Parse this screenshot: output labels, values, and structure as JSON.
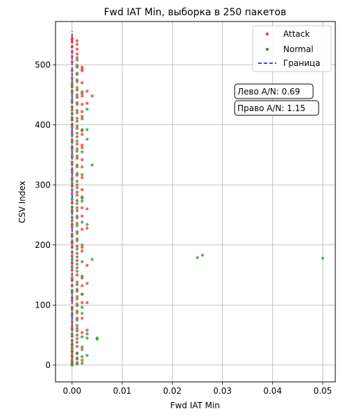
{
  "chart_data": {
    "type": "scatter",
    "title": "Fwd IAT Min, выборка в 250 пакетов",
    "xlabel": "Fwd IAT Min",
    "ylabel": "CSV Index",
    "xlim": [
      -0.0033,
      0.0525
    ],
    "ylim": [
      -28,
      572
    ],
    "xticks": [
      0.0,
      0.01,
      0.02,
      0.03,
      0.04,
      0.05
    ],
    "xtick_labels": [
      "0.00",
      "0.01",
      "0.02",
      "0.03",
      "0.04",
      "0.05"
    ],
    "yticks": [
      0,
      100,
      200,
      300,
      400,
      500
    ],
    "ytick_labels": [
      "0",
      "100",
      "200",
      "300",
      "400",
      "500"
    ],
    "grid": true,
    "legend_position": "top-right",
    "boundary": {
      "name": "Граница",
      "x": 0.0,
      "color": "#0000ff",
      "style": "dashed"
    },
    "annotations": [
      "Лево A/N: 0.69",
      "Право A/N: 1.15"
    ],
    "series": [
      {
        "name": "Attack",
        "color": "#ee3333",
        "points": [
          [
            0,
            2
          ],
          [
            0,
            8
          ],
          [
            0,
            14
          ],
          [
            0,
            22
          ],
          [
            0,
            28
          ],
          [
            0,
            35
          ],
          [
            0,
            48
          ],
          [
            0,
            60
          ],
          [
            0,
            72
          ],
          [
            0,
            85
          ],
          [
            0,
            96
          ],
          [
            0,
            108
          ],
          [
            0,
            120
          ],
          [
            0,
            132
          ],
          [
            0,
            145
          ],
          [
            0,
            158
          ],
          [
            0,
            170
          ],
          [
            0,
            182
          ],
          [
            0,
            196
          ],
          [
            0,
            205
          ],
          [
            0,
            218
          ],
          [
            0,
            230
          ],
          [
            0,
            240
          ],
          [
            0,
            258
          ],
          [
            0,
            270
          ],
          [
            0,
            285
          ],
          [
            0,
            298
          ],
          [
            0,
            312
          ],
          [
            0,
            325
          ],
          [
            0,
            338
          ],
          [
            0,
            350
          ],
          [
            0,
            362
          ],
          [
            0,
            375
          ],
          [
            0,
            388
          ],
          [
            0,
            400
          ],
          [
            0,
            412
          ],
          [
            0,
            425
          ],
          [
            0,
            438
          ],
          [
            0,
            452
          ],
          [
            0,
            466
          ],
          [
            0,
            478
          ],
          [
            0,
            490
          ],
          [
            0,
            505
          ],
          [
            0,
            514
          ],
          [
            0,
            522
          ],
          [
            0,
            530
          ],
          [
            0,
            538
          ],
          [
            0,
            542
          ],
          [
            0,
            544
          ],
          [
            0.001,
            4
          ],
          [
            0.001,
            12
          ],
          [
            0.001,
            20
          ],
          [
            0.001,
            31
          ],
          [
            0.001,
            44
          ],
          [
            0.001,
            57
          ],
          [
            0.001,
            66
          ],
          [
            0.001,
            78
          ],
          [
            0.001,
            90
          ],
          [
            0.001,
            102
          ],
          [
            0.001,
            114
          ],
          [
            0.001,
            126
          ],
          [
            0.001,
            138
          ],
          [
            0.001,
            150
          ],
          [
            0.001,
            162
          ],
          [
            0.001,
            174
          ],
          [
            0.001,
            186
          ],
          [
            0.001,
            198
          ],
          [
            0.001,
            210
          ],
          [
            0.001,
            222
          ],
          [
            0.001,
            236
          ],
          [
            0.001,
            248
          ],
          [
            0.001,
            262
          ],
          [
            0.001,
            274
          ],
          [
            0.001,
            288
          ],
          [
            0.001,
            300
          ],
          [
            0.001,
            316
          ],
          [
            0.001,
            330
          ],
          [
            0.001,
            344
          ],
          [
            0.001,
            356
          ],
          [
            0.001,
            368
          ],
          [
            0.001,
            380
          ],
          [
            0.001,
            394
          ],
          [
            0.001,
            406
          ],
          [
            0.001,
            420
          ],
          [
            0.001,
            434
          ],
          [
            0.001,
            446
          ],
          [
            0.001,
            458
          ],
          [
            0.001,
            472
          ],
          [
            0.001,
            484
          ],
          [
            0.001,
            496
          ],
          [
            0.001,
            508
          ],
          [
            0.001,
            518
          ],
          [
            0.001,
            526
          ],
          [
            0.001,
            534
          ],
          [
            0.001,
            540
          ],
          [
            0.002,
            8
          ],
          [
            0.002,
            26
          ],
          [
            0.002,
            54
          ],
          [
            0.002,
            78
          ],
          [
            0.002,
            104
          ],
          [
            0.002,
            118
          ],
          [
            0.002,
            132
          ],
          [
            0.002,
            148
          ],
          [
            0.002,
            190
          ],
          [
            0.002,
            196
          ],
          [
            0.002,
            226
          ],
          [
            0.002,
            248
          ],
          [
            0.002,
            262
          ],
          [
            0.002,
            280
          ],
          [
            0.002,
            292
          ],
          [
            0.002,
            312
          ],
          [
            0.002,
            330
          ],
          [
            0.002,
            342
          ],
          [
            0.002,
            362
          ],
          [
            0.002,
            366
          ],
          [
            0.002,
            384
          ],
          [
            0.002,
            390
          ],
          [
            0.002,
            414
          ],
          [
            0.002,
            422
          ],
          [
            0.002,
            434
          ],
          [
            0.002,
            448
          ],
          [
            0.002,
            452
          ],
          [
            0.002,
            470
          ],
          [
            0.002,
            490
          ],
          [
            0.002,
            493
          ],
          [
            0.002,
            496
          ],
          [
            0.003,
            58
          ],
          [
            0.003,
            104
          ],
          [
            0.003,
            136
          ],
          [
            0.003,
            166
          ],
          [
            0.003,
            228
          ],
          [
            0.003,
            260
          ],
          [
            0.003,
            436
          ],
          [
            0.003,
            456
          ],
          [
            0.004,
            448
          ]
        ]
      },
      {
        "name": "Normal",
        "color": "#2e9a2e",
        "points": [
          [
            0,
            0
          ],
          [
            0,
            5
          ],
          [
            0,
            17
          ],
          [
            0,
            24
          ],
          [
            0,
            33
          ],
          [
            0,
            41
          ],
          [
            0,
            52
          ],
          [
            0,
            64
          ],
          [
            0,
            81
          ],
          [
            0,
            92
          ],
          [
            0,
            112
          ],
          [
            0,
            124
          ],
          [
            0,
            141
          ],
          [
            0,
            164
          ],
          [
            0,
            175
          ],
          [
            0,
            188
          ],
          [
            0,
            203
          ],
          [
            0,
            214
          ],
          [
            0,
            234
          ],
          [
            0,
            246
          ],
          [
            0,
            255
          ],
          [
            0,
            263
          ],
          [
            0,
            276
          ],
          [
            0,
            292
          ],
          [
            0,
            303
          ],
          [
            0,
            309
          ],
          [
            0,
            321
          ],
          [
            0,
            334
          ],
          [
            0,
            346
          ],
          [
            0,
            358
          ],
          [
            0,
            371
          ],
          [
            0,
            384
          ],
          [
            0,
            396
          ],
          [
            0,
            408
          ],
          [
            0,
            418
          ],
          [
            0,
            430
          ],
          [
            0,
            442
          ],
          [
            0,
            456
          ],
          [
            0,
            463
          ],
          [
            0,
            470
          ],
          [
            0.001,
            2
          ],
          [
            0.001,
            10
          ],
          [
            0.001,
            19
          ],
          [
            0.001,
            38
          ],
          [
            0.001,
            50
          ],
          [
            0.001,
            61
          ],
          [
            0.001,
            75
          ],
          [
            0.001,
            87
          ],
          [
            0.001,
            99
          ],
          [
            0.001,
            110
          ],
          [
            0.001,
            123
          ],
          [
            0.001,
            134
          ],
          [
            0.001,
            156
          ],
          [
            0.001,
            168
          ],
          [
            0.001,
            180
          ],
          [
            0.001,
            193
          ],
          [
            0.001,
            207
          ],
          [
            0.001,
            219
          ],
          [
            0.001,
            232
          ],
          [
            0.001,
            245
          ],
          [
            0.001,
            257
          ],
          [
            0.001,
            269
          ],
          [
            0.001,
            283
          ],
          [
            0.001,
            295
          ],
          [
            0.001,
            306
          ],
          [
            0.001,
            319
          ],
          [
            0.001,
            333
          ],
          [
            0.001,
            348
          ],
          [
            0.001,
            360
          ],
          [
            0.001,
            373
          ],
          [
            0.001,
            386
          ],
          [
            0.001,
            398
          ],
          [
            0.001,
            411
          ],
          [
            0.001,
            424
          ],
          [
            0.001,
            437
          ],
          [
            0.001,
            450
          ],
          [
            0.001,
            462
          ],
          [
            0.001,
            475
          ],
          [
            0.001,
            486
          ],
          [
            0.001,
            499
          ],
          [
            0.001,
            512
          ],
          [
            0.002,
            3
          ],
          [
            0.002,
            14
          ],
          [
            0.002,
            30
          ],
          [
            0.002,
            47
          ],
          [
            0.002,
            86
          ],
          [
            0.002,
            96
          ],
          [
            0.002,
            118
          ],
          [
            0.002,
            145
          ],
          [
            0.002,
            172
          ],
          [
            0.002,
            200
          ],
          [
            0.002,
            238
          ],
          [
            0.002,
            273
          ],
          [
            0.002,
            278
          ],
          [
            0.002,
            317
          ],
          [
            0.002,
            355
          ],
          [
            0.002,
            392
          ],
          [
            0.002,
            410
          ],
          [
            0.002,
            455
          ],
          [
            0.003,
            16
          ],
          [
            0.003,
            45
          ],
          [
            0.003,
            52
          ],
          [
            0.003,
            234
          ],
          [
            0.003,
            376
          ],
          [
            0.003,
            392
          ],
          [
            0.003,
            426
          ],
          [
            0.004,
            176
          ],
          [
            0.004,
            333
          ],
          [
            0.005,
            43
          ],
          [
            0.005,
            45
          ],
          [
            0.025,
            179
          ],
          [
            0.026,
            183
          ],
          [
            0.05,
            178
          ]
        ]
      }
    ]
  }
}
